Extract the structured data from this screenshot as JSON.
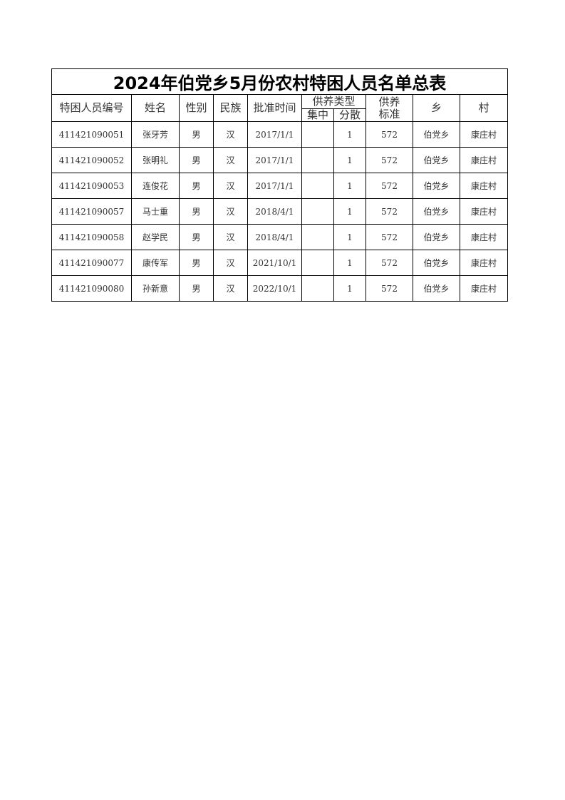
{
  "title": "2024年伯党乡5月份农村特困人员名单总表",
  "headers": {
    "id": "特困人员编号",
    "name": "姓名",
    "gender": "性别",
    "ethnicity": "民族",
    "approval_date": "批准时间",
    "support_type": "供养类型",
    "centralized": "集中",
    "dispersed": "分散",
    "standard": "供养\n标准",
    "township": "乡",
    "village": "村"
  },
  "rows": [
    {
      "id": "411421090051",
      "name": "张牙芳",
      "gender": "男",
      "ethnicity": "汉",
      "approval_date": "2017/1/1",
      "centralized": "",
      "dispersed": "1",
      "standard": "572",
      "township": "伯党乡",
      "village": "康庄村"
    },
    {
      "id": "411421090052",
      "name": "张明礼",
      "gender": "男",
      "ethnicity": "汉",
      "approval_date": "2017/1/1",
      "centralized": "",
      "dispersed": "1",
      "standard": "572",
      "township": "伯党乡",
      "village": "康庄村"
    },
    {
      "id": "411421090053",
      "name": "连俊花",
      "gender": "男",
      "ethnicity": "汉",
      "approval_date": "2017/1/1",
      "centralized": "",
      "dispersed": "1",
      "standard": "572",
      "township": "伯党乡",
      "village": "康庄村"
    },
    {
      "id": "411421090057",
      "name": "马士重",
      "gender": "男",
      "ethnicity": "汉",
      "approval_date": "2018/4/1",
      "centralized": "",
      "dispersed": "1",
      "standard": "572",
      "township": "伯党乡",
      "village": "康庄村"
    },
    {
      "id": "411421090058",
      "name": "赵学民",
      "gender": "男",
      "ethnicity": "汉",
      "approval_date": "2018/4/1",
      "centralized": "",
      "dispersed": "1",
      "standard": "572",
      "township": "伯党乡",
      "village": "康庄村"
    },
    {
      "id": "411421090077",
      "name": "康传军",
      "gender": "男",
      "ethnicity": "汉",
      "approval_date": "2021/10/1",
      "centralized": "",
      "dispersed": "1",
      "standard": "572",
      "township": "伯党乡",
      "village": "康庄村"
    },
    {
      "id": "411421090080",
      "name": "孙新意",
      "gender": "男",
      "ethnicity": "汉",
      "approval_date": "2022/10/1",
      "centralized": "",
      "dispersed": "1",
      "standard": "572",
      "township": "伯党乡",
      "village": "康庄村"
    }
  ]
}
